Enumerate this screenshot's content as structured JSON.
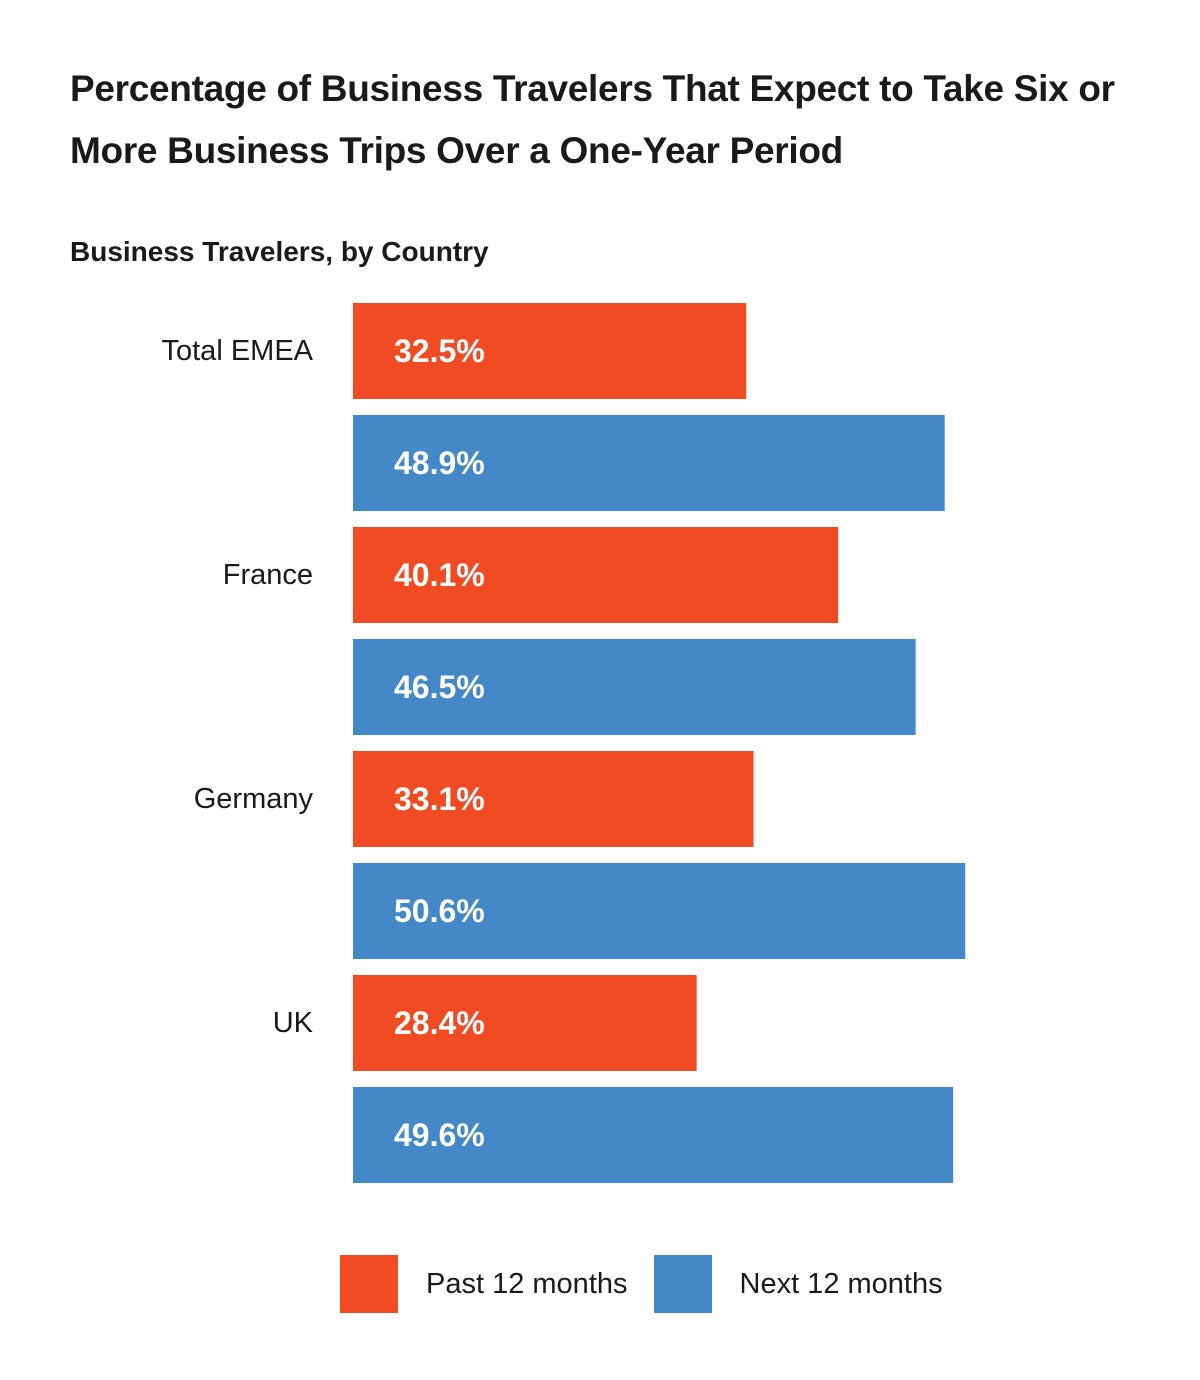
{
  "chart_data": {
    "type": "bar",
    "orientation": "horizontal",
    "title": "Percentage of Business Travelers That Expect to Take Six or More Business Trips Over a One-Year Period",
    "subtitle": "Business Travelers, by Country",
    "categories": [
      "Total EMEA",
      "France",
      "Germany",
      "UK"
    ],
    "series": [
      {
        "name": "Past 12 months",
        "color": "#f04b23",
        "values": [
          32.5,
          40.1,
          33.1,
          28.4
        ],
        "labels": [
          "32.5%",
          "40.1%",
          "33.1%",
          "28.4%"
        ]
      },
      {
        "name": "Next 12 months",
        "color": "#4488c7",
        "values": [
          48.9,
          46.5,
          50.6,
          49.6
        ],
        "labels": [
          "48.9%",
          "46.5%",
          "50.6%",
          "49.6%"
        ]
      }
    ],
    "xlim": [
      0,
      60
    ],
    "unit": "%",
    "grid": false,
    "legend": "bottom"
  }
}
